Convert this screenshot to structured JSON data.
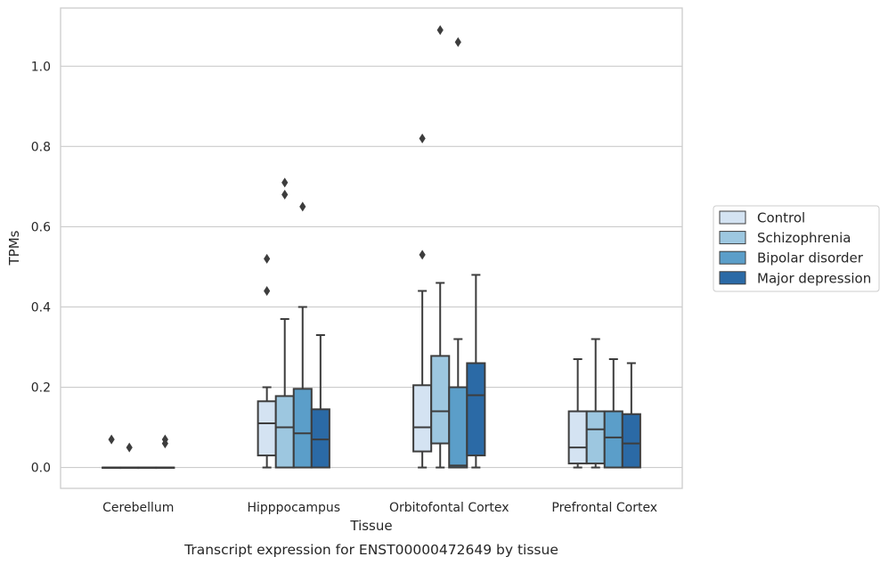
{
  "chart_data": {
    "type": "box",
    "caption": "Transcript expression for ENST00000472649 by tissue",
    "xlabel": "Tissue",
    "ylabel": "TPMs",
    "ylim": [
      -0.052,
      1.145
    ],
    "yticks": [
      "0.0",
      "0.2",
      "0.4",
      "0.6",
      "0.8",
      "1.0"
    ],
    "grid": true,
    "legend_position": "right",
    "categories": [
      "Cerebellum",
      "Hipppocampus",
      "Orbitofontal Cortex",
      "Prefrontal Cortex"
    ],
    "series": [
      {
        "name": "Control",
        "color": "#d4e3f2",
        "boxes": [
          {
            "min": 0.0,
            "q1": 0.0,
            "median": 0.0,
            "q3": 0.0,
            "max": 0.0,
            "outliers": [
              0.07
            ]
          },
          {
            "min": 0.0,
            "q1": 0.03,
            "median": 0.11,
            "q3": 0.165,
            "max": 0.2,
            "outliers": [
              0.44,
              0.52
            ]
          },
          {
            "min": 0.0,
            "q1": 0.04,
            "median": 0.1,
            "q3": 0.205,
            "max": 0.44,
            "outliers": [
              0.53,
              0.82
            ]
          },
          {
            "min": 0.0,
            "q1": 0.01,
            "median": 0.05,
            "q3": 0.14,
            "max": 0.27,
            "outliers": []
          }
        ]
      },
      {
        "name": "Schizophrenia",
        "color": "#9dc7e0",
        "boxes": [
          {
            "min": 0.0,
            "q1": 0.0,
            "median": 0.0,
            "q3": 0.0,
            "max": 0.0,
            "outliers": [
              0.05
            ]
          },
          {
            "min": 0.0,
            "q1": 0.0,
            "median": 0.1,
            "q3": 0.178,
            "max": 0.37,
            "outliers": [
              0.68,
              0.71
            ]
          },
          {
            "min": 0.0,
            "q1": 0.06,
            "median": 0.14,
            "q3": 0.278,
            "max": 0.46,
            "outliers": [
              1.09
            ]
          },
          {
            "min": 0.0,
            "q1": 0.01,
            "median": 0.095,
            "q3": 0.14,
            "max": 0.32,
            "outliers": []
          }
        ]
      },
      {
        "name": "Bipolar disorder",
        "color": "#5b9ec9",
        "boxes": [
          {
            "min": 0.0,
            "q1": 0.0,
            "median": 0.0,
            "q3": 0.0,
            "max": 0.0,
            "outliers": []
          },
          {
            "min": 0.0,
            "q1": 0.0,
            "median": 0.085,
            "q3": 0.196,
            "max": 0.4,
            "outliers": [
              0.65
            ]
          },
          {
            "min": 0.0,
            "q1": 0.0,
            "median": 0.005,
            "q3": 0.2,
            "max": 0.32,
            "outliers": [
              1.06
            ]
          },
          {
            "min": 0.0,
            "q1": 0.0,
            "median": 0.075,
            "q3": 0.14,
            "max": 0.27,
            "outliers": []
          }
        ]
      },
      {
        "name": "Major depression",
        "color": "#2b6aa6",
        "boxes": [
          {
            "min": 0.0,
            "q1": 0.0,
            "median": 0.0,
            "q3": 0.0,
            "max": 0.0,
            "outliers": [
              0.06,
              0.07
            ]
          },
          {
            "min": 0.0,
            "q1": 0.0,
            "median": 0.07,
            "q3": 0.145,
            "max": 0.33,
            "outliers": []
          },
          {
            "min": 0.0,
            "q1": 0.03,
            "median": 0.18,
            "q3": 0.26,
            "max": 0.48,
            "outliers": []
          },
          {
            "min": 0.0,
            "q1": 0.0,
            "median": 0.06,
            "q3": 0.133,
            "max": 0.26,
            "outliers": []
          }
        ]
      }
    ]
  }
}
